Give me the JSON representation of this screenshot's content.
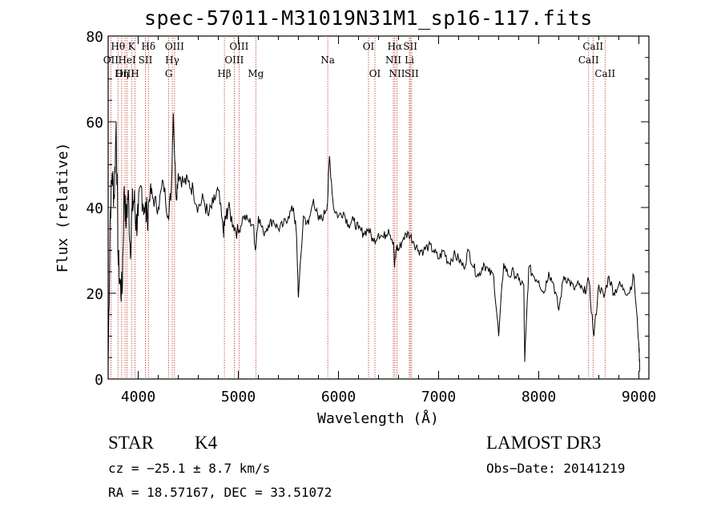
{
  "chart_data": {
    "type": "line",
    "title": "spec-57011-M31019N31M1_sp16-117.fits",
    "xlabel": "Wavelength (Å)",
    "ylabel": "Flux (relative)",
    "xlim": [
      3700,
      9100
    ],
    "ylim": [
      0,
      80
    ],
    "xticks": [
      4000,
      5000,
      6000,
      7000,
      8000,
      9000
    ],
    "yticks": [
      0,
      20,
      40,
      60,
      80
    ],
    "series": [
      {
        "name": "flux",
        "x": [
          3700,
          3720,
          3740,
          3760,
          3780,
          3800,
          3820,
          3840,
          3860,
          3880,
          3900,
          3920,
          3940,
          3960,
          3980,
          4000,
          4030,
          4060,
          4090,
          4120,
          4150,
          4200,
          4250,
          4300,
          4330,
          4350,
          4380,
          4400,
          4450,
          4500,
          4550,
          4600,
          4650,
          4700,
          4750,
          4800,
          4850,
          4860,
          4880,
          4900,
          4950,
          5000,
          5050,
          5100,
          5150,
          5170,
          5200,
          5250,
          5300,
          5350,
          5400,
          5450,
          5500,
          5550,
          5580,
          5600,
          5650,
          5700,
          5750,
          5800,
          5850,
          5890,
          5910,
          5950,
          6000,
          6050,
          6100,
          6150,
          6200,
          6250,
          6300,
          6350,
          6400,
          6450,
          6500,
          6550,
          6560,
          6580,
          6600,
          6650,
          6700,
          6750,
          6800,
          6850,
          6900,
          6950,
          7000,
          7050,
          7100,
          7150,
          7200,
          7250,
          7300,
          7350,
          7400,
          7450,
          7500,
          7550,
          7600,
          7650,
          7700,
          7750,
          7800,
          7850,
          7860,
          7900,
          7950,
          8000,
          8050,
          8100,
          8150,
          8200,
          8250,
          8300,
          8350,
          8400,
          8450,
          8500,
          8550,
          8600,
          8650,
          8700,
          8750,
          8800,
          8850,
          8900,
          8950,
          9000,
          9010
        ],
        "y": [
          3,
          38,
          48,
          42,
          60,
          28,
          22,
          20,
          45,
          36,
          44,
          30,
          40,
          42,
          36,
          38,
          45,
          40,
          38,
          44,
          42,
          40,
          46,
          38,
          44,
          62,
          42,
          48,
          46,
          46,
          44,
          40,
          42,
          38,
          41,
          44,
          34,
          36,
          38,
          40,
          36,
          34,
          38,
          37,
          36,
          30,
          38,
          34,
          36,
          37,
          35,
          36,
          38,
          40,
          34,
          19,
          38,
          36,
          42,
          37,
          38,
          41,
          52,
          40,
          38,
          39,
          36,
          37,
          35,
          34,
          35,
          32,
          34,
          33,
          35,
          32,
          26,
          31,
          30,
          33,
          34,
          32,
          30,
          30,
          31,
          30,
          28,
          30,
          27,
          29,
          28,
          26,
          30,
          26,
          24,
          27,
          25,
          24,
          10,
          27,
          24,
          25,
          23,
          22,
          4,
          26,
          24,
          23,
          20,
          25,
          22,
          16,
          24,
          23,
          21,
          22,
          20,
          23,
          10,
          22,
          19,
          24,
          20,
          22,
          21,
          20,
          24,
          8,
          2
        ]
      }
    ],
    "annotations": [
      {
        "label": "Hθ",
        "x": 3798,
        "row": 1
      },
      {
        "label": "OII",
        "x": 3727,
        "row": 2
      },
      {
        "label": "OIII",
        "x": 3869,
        "row": 3
      },
      {
        "label": "K",
        "x": 3934,
        "row": 1
      },
      {
        "label": "HeI",
        "x": 3889,
        "row": 2
      },
      {
        "label": "Hη",
        "x": 3835,
        "row": 3
      },
      {
        "label": "Hδ",
        "x": 4102,
        "row": 1
      },
      {
        "label": "SII",
        "x": 4072,
        "row": 2
      },
      {
        "label": "H",
        "x": 3968,
        "row": 3
      },
      {
        "label": "OIII",
        "x": 4363,
        "row": 1
      },
      {
        "label": "Hγ",
        "x": 4340,
        "row": 2
      },
      {
        "label": "G",
        "x": 4305,
        "row": 3
      },
      {
        "label": "OIII",
        "x": 5007,
        "row": 1
      },
      {
        "label": "OIII",
        "x": 4959,
        "row": 2
      },
      {
        "label": "Hβ",
        "x": 4861,
        "row": 3
      },
      {
        "label": "Mg",
        "x": 5175,
        "row": 3
      },
      {
        "label": "Na",
        "x": 5893,
        "row": 2
      },
      {
        "label": "OI",
        "x": 6300,
        "row": 1
      },
      {
        "label": "OI",
        "x": 6364,
        "row": 3
      },
      {
        "label": "Hα",
        "x": 6563,
        "row": 1
      },
      {
        "label": "SII",
        "x": 6717,
        "row": 1
      },
      {
        "label": "NII",
        "x": 6548,
        "row": 2
      },
      {
        "label": "Li",
        "x": 6708,
        "row": 2
      },
      {
        "label": "NII",
        "x": 6584,
        "row": 3
      },
      {
        "label": "SII",
        "x": 6731,
        "row": 3
      },
      {
        "label": "CaII",
        "x": 8542,
        "row": 1
      },
      {
        "label": "CaII",
        "x": 8498,
        "row": 2
      },
      {
        "label": "CaII",
        "x": 8662,
        "row": 3
      }
    ]
  },
  "footer": {
    "object_type": "STAR",
    "subclass": "K4",
    "survey": "LAMOST DR3",
    "cz": "cz = −25.1 ± 8.7 km/s",
    "obs_date": "Obs−Date: 20141219",
    "coords": "RA =  18.57167, DEC =  33.51072"
  }
}
